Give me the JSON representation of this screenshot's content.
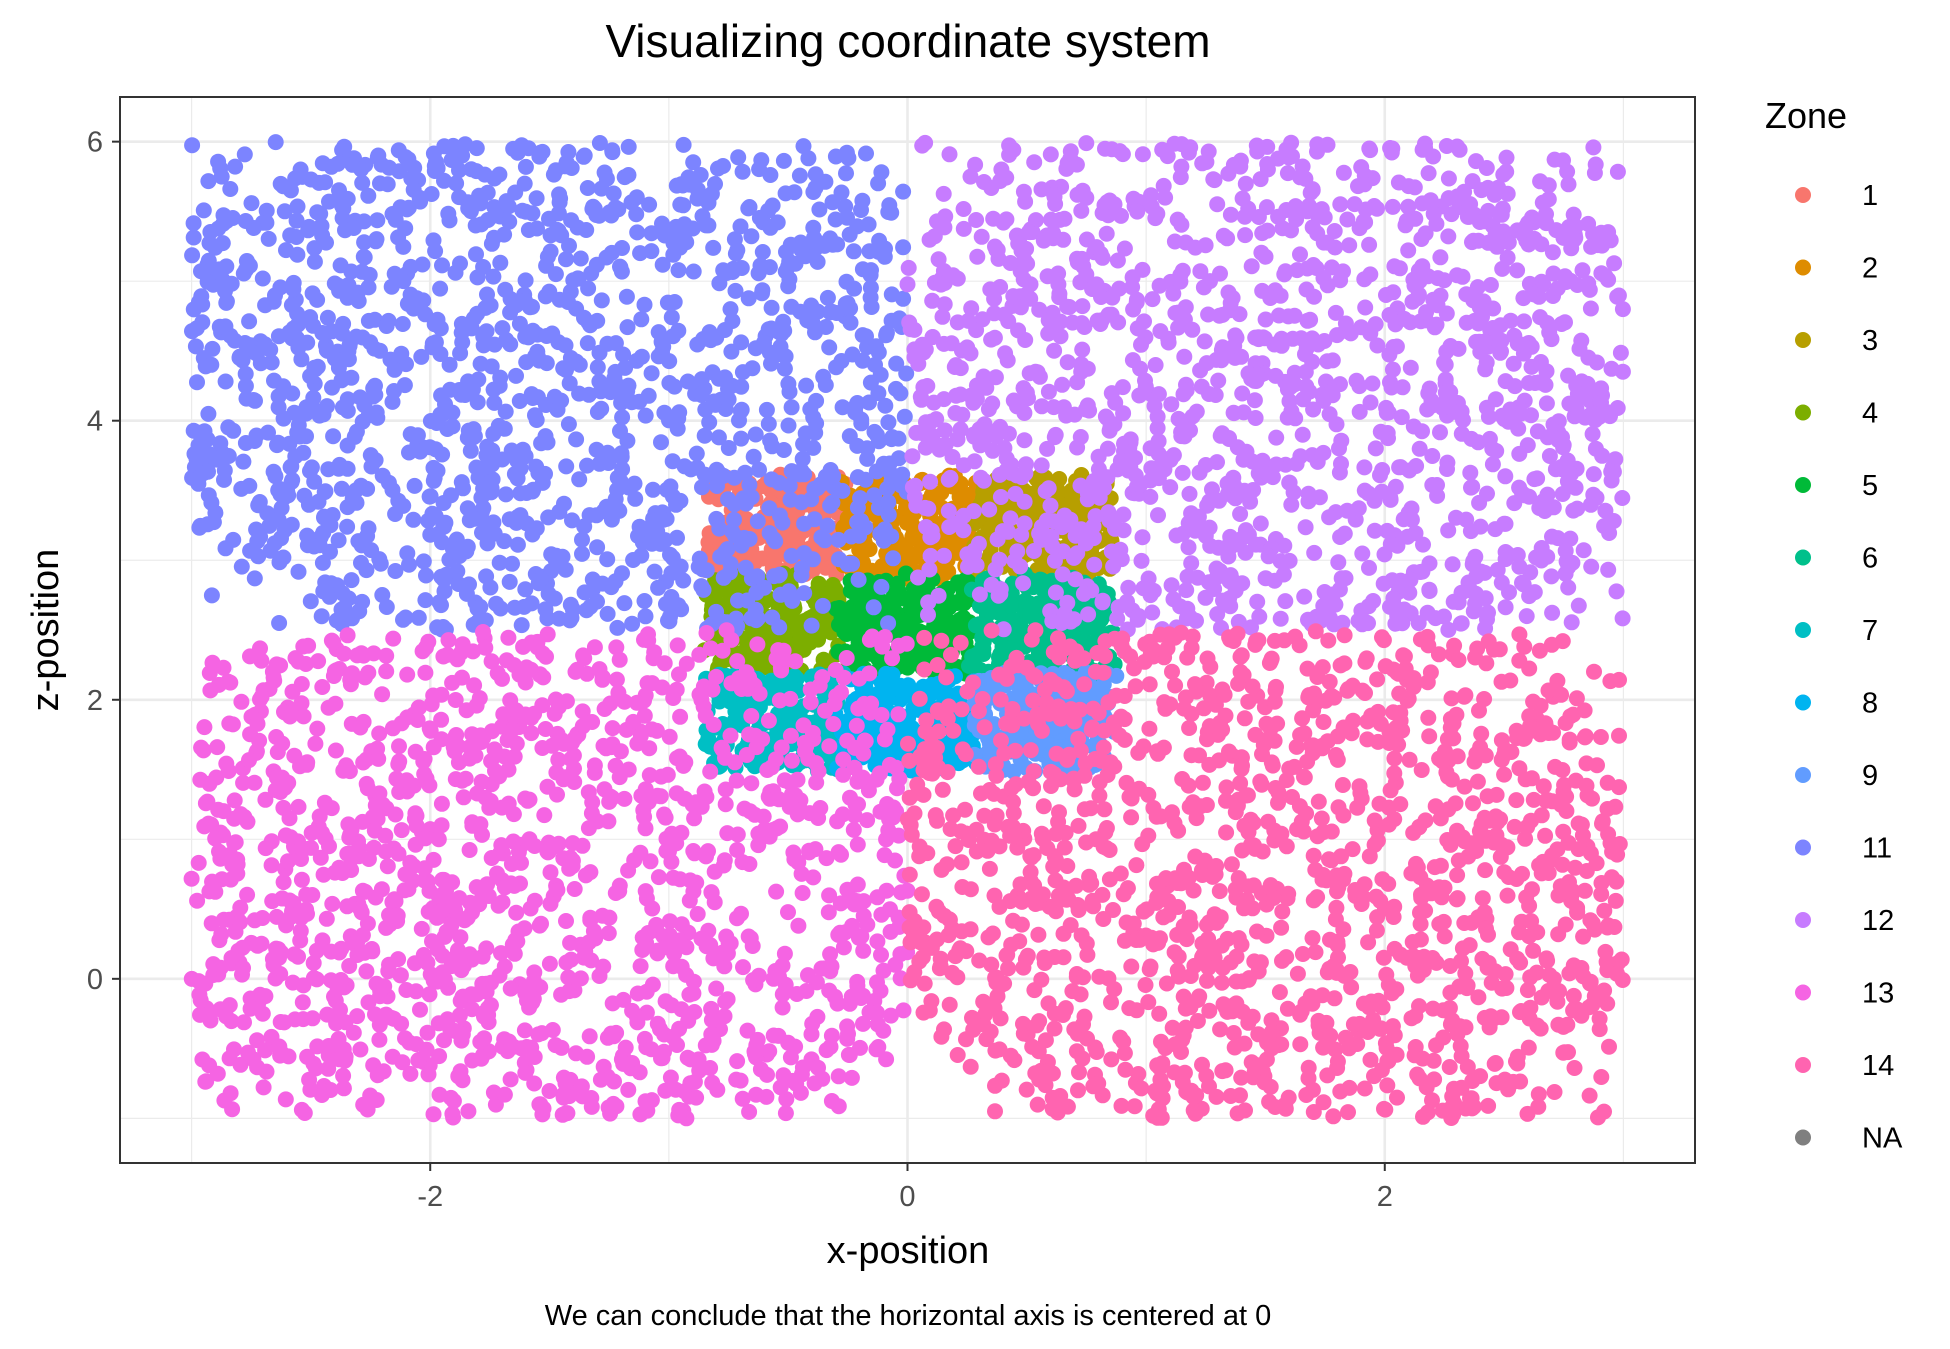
{
  "chart_data": {
    "type": "scatter",
    "title": "Visualizing coordinate system",
    "xlabel": "x-position",
    "ylabel": "z-position",
    "caption": "We can conclude that the horizontal axis is centered at 0",
    "xlim": [
      -3.3,
      3.3
    ],
    "ylim": [
      -1.32,
      6.32
    ],
    "x_ticks": [
      -2,
      0,
      2
    ],
    "y_ticks": [
      0,
      2,
      4,
      6
    ],
    "x_tick_labels": [
      "-2",
      "0",
      "2"
    ],
    "y_tick_labels": [
      "0",
      "2",
      "4",
      "6"
    ],
    "grid": true,
    "legend": {
      "title": "Zone",
      "position": "right",
      "entries": [
        {
          "label": "1",
          "color": "#F8766D"
        },
        {
          "label": "2",
          "color": "#DE8C00"
        },
        {
          "label": "3",
          "color": "#B79F00"
        },
        {
          "label": "4",
          "color": "#7CAE00"
        },
        {
          "label": "5",
          "color": "#00BA38"
        },
        {
          "label": "6",
          "color": "#00C08B"
        },
        {
          "label": "7",
          "color": "#00BFC4"
        },
        {
          "label": "8",
          "color": "#00B4F0"
        },
        {
          "label": "9",
          "color": "#619CFF"
        },
        {
          "label": "11",
          "color": "#7C84FF"
        },
        {
          "label": "12",
          "color": "#C77CFF"
        },
        {
          "label": "13",
          "color": "#F564E3"
        },
        {
          "label": "14",
          "color": "#FF64B0"
        },
        {
          "label": "NA",
          "color": "#7F7F7F"
        }
      ]
    },
    "series": [
      {
        "name": "1",
        "color": "#F8766D",
        "x_range": [
          -0.83,
          -0.28
        ],
        "y_range": [
          2.88,
          3.6
        ]
      },
      {
        "name": "2",
        "color": "#DE8C00",
        "x_range": [
          -0.28,
          0.28
        ],
        "y_range": [
          2.88,
          3.6
        ]
      },
      {
        "name": "3",
        "color": "#B79F00",
        "x_range": [
          0.28,
          0.85
        ],
        "y_range": [
          2.88,
          3.6
        ]
      },
      {
        "name": "4",
        "color": "#7CAE00",
        "x_range": [
          -0.83,
          -0.28
        ],
        "y_range": [
          2.18,
          2.88
        ]
      },
      {
        "name": "5",
        "color": "#00BA38",
        "x_range": [
          -0.28,
          0.28
        ],
        "y_range": [
          2.18,
          2.88
        ]
      },
      {
        "name": "6",
        "color": "#00C08B",
        "x_range": [
          0.28,
          0.85
        ],
        "y_range": [
          2.18,
          2.88
        ]
      },
      {
        "name": "7",
        "color": "#00BFC4",
        "x_range": [
          -0.83,
          -0.28
        ],
        "y_range": [
          1.5,
          2.18
        ]
      },
      {
        "name": "8",
        "color": "#00B4F0",
        "x_range": [
          -0.28,
          0.28
        ],
        "y_range": [
          1.5,
          2.18
        ]
      },
      {
        "name": "9",
        "color": "#619CFF",
        "x_range": [
          0.28,
          0.85
        ],
        "y_range": [
          1.5,
          2.18
        ]
      },
      {
        "name": "11",
        "color": "#7C84FF",
        "x_range": [
          -3.0,
          0.0
        ],
        "y_range": [
          2.5,
          6.0
        ]
      },
      {
        "name": "12",
        "color": "#C77CFF",
        "x_range": [
          0.0,
          3.0
        ],
        "y_range": [
          2.5,
          6.0
        ]
      },
      {
        "name": "13",
        "color": "#F564E3",
        "x_range": [
          -3.0,
          0.0
        ],
        "y_range": [
          -1.0,
          2.5
        ]
      },
      {
        "name": "14",
        "color": "#FF64B0",
        "x_range": [
          0.0,
          3.0
        ],
        "y_range": [
          -1.0,
          2.5
        ]
      }
    ]
  }
}
